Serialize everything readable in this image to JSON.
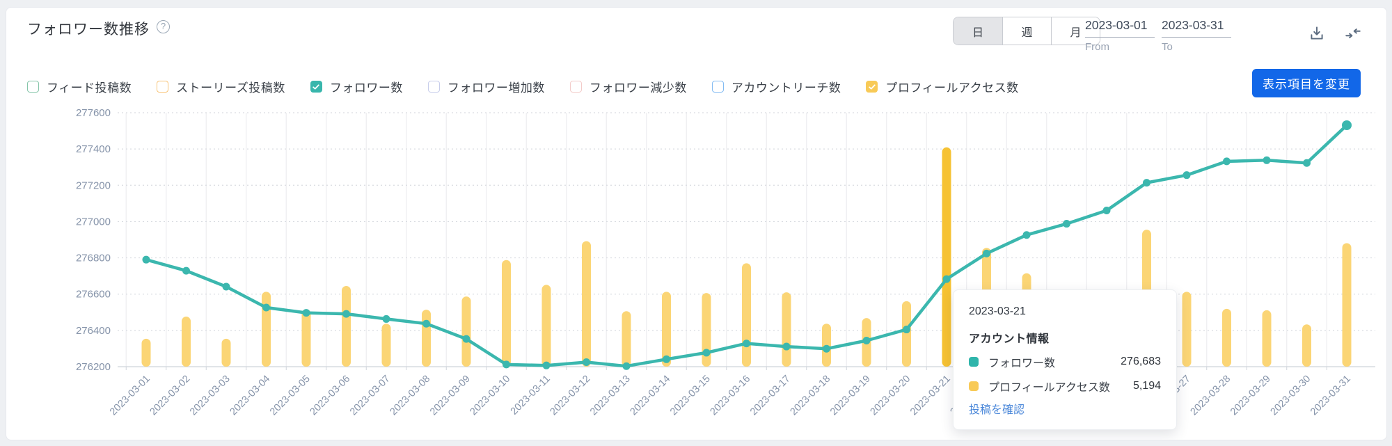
{
  "header": {
    "title": "フォロワー数推移",
    "help_icon": "question-circle-icon",
    "period_toggle": {
      "options": [
        "日",
        "週",
        "月"
      ],
      "selected": "日"
    },
    "date_from": {
      "value": "2023-03-01",
      "label": "From"
    },
    "date_to": {
      "value": "2023-03-31",
      "label": "To"
    },
    "download_icon": "download-icon",
    "collapse_icon": "collapse-horizontal-icon"
  },
  "legend": {
    "items": [
      {
        "label": "フィード投稿数",
        "checked": false,
        "color": "#85c5a9"
      },
      {
        "label": "ストーリーズ投稿数",
        "checked": false,
        "color": "#f8c478"
      },
      {
        "label": "フォロワー数",
        "checked": true,
        "color": "#38b6ac"
      },
      {
        "label": "フォロワー増加数",
        "checked": false,
        "color": "#c7cdeb"
      },
      {
        "label": "フォロワー減少数",
        "checked": false,
        "color": "#f3cbc9"
      },
      {
        "label": "アカウントリーチ数",
        "checked": false,
        "color": "#82bbf2"
      },
      {
        "label": "プロフィールアクセス数",
        "checked": true,
        "color": "#f8ca57"
      }
    ],
    "change_button": "表示項目を変更"
  },
  "chart_data": {
    "type": "line+bar",
    "title": "フォロワー数推移",
    "x": [
      "2023-03-01",
      "2023-03-02",
      "2023-03-03",
      "2023-03-04",
      "2023-03-05",
      "2023-03-06",
      "2023-03-07",
      "2023-03-08",
      "2023-03-09",
      "2023-03-10",
      "2023-03-11",
      "2023-03-12",
      "2023-03-13",
      "2023-03-14",
      "2023-03-15",
      "2023-03-16",
      "2023-03-17",
      "2023-03-18",
      "2023-03-19",
      "2023-03-20",
      "2023-03-21",
      "2023-03-22",
      "2023-03-23",
      "2023-03-24",
      "2023-03-25",
      "2023-03-26",
      "2023-03-27",
      "2023-03-28",
      "2023-03-29",
      "2023-03-30",
      "2023-03-31"
    ],
    "ylim": [
      276200,
      277600
    ],
    "ytick_step": 200,
    "grid": true,
    "series": [
      {
        "name": "フォロワー数",
        "type": "line",
        "color": "#3bb7ae",
        "values": [
          276790,
          276729,
          276641,
          276526,
          276497,
          276491,
          276463,
          276437,
          276353,
          276212,
          276207,
          276225,
          276203,
          276241,
          276277,
          276328,
          276311,
          276299,
          276344,
          276405,
          276683,
          276824,
          276926,
          276988,
          277061,
          277214,
          277256,
          277332,
          277338,
          277323,
          277531
        ]
      },
      {
        "name": "プロフィールアクセス数",
        "type": "bar",
        "color": "#fbd36e",
        "highlight_color": "#f6c233",
        "highlight_date": "2023-03-21",
        "values_on_follower_axis": [
          276354,
          276476,
          276354,
          276613,
          276517,
          276645,
          276437,
          276514,
          276587,
          276788,
          276651,
          276892,
          276506,
          276613,
          276606,
          276770,
          276610,
          276437,
          276468,
          276561,
          277409,
          276855,
          276715,
          276450,
          276500,
          276955,
          276613,
          276519,
          276511,
          276433,
          276881
        ],
        "values_estimated": [
          660,
          1185,
          660,
          1775,
          1360,
          1910,
          1020,
          1350,
          1660,
          2525,
          1940,
          2975,
          1315,
          1775,
          1745,
          2450,
          1760,
          1020,
          1150,
          1550,
          5194,
          2815,
          2215,
          null,
          null,
          3245,
          1775,
          1370,
          1335,
          1000,
          2925
        ],
        "tooltip_known_value": "5,194"
      }
    ]
  },
  "tooltip": {
    "date": "2023-03-21",
    "section_title": "アカウント情報",
    "rows": [
      {
        "label": "フォロワー数",
        "value": "276,683",
        "color": "#2fb5ab"
      },
      {
        "label": "プロフィールアクセス数",
        "value": "5,194",
        "color": "#f8ca57"
      }
    ],
    "link": "投稿を確認"
  }
}
